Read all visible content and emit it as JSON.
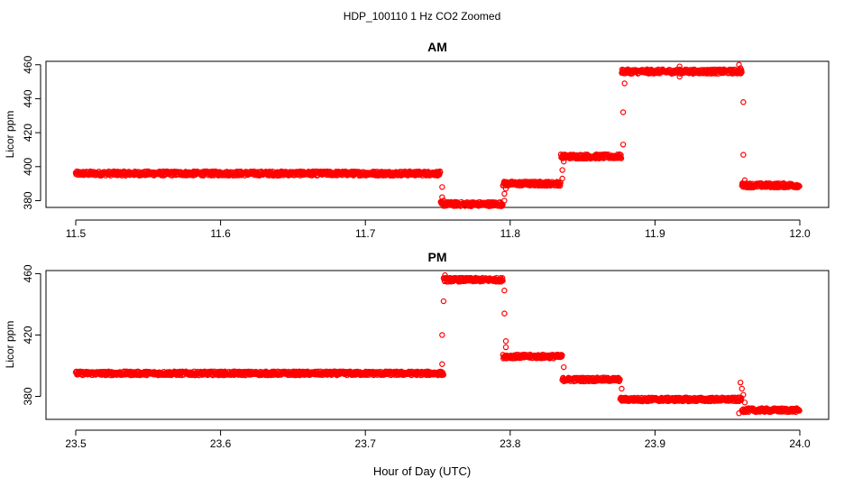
{
  "figure": {
    "title": "HDP_100110  1 Hz CO2 Zoomed",
    "xlabel": "Hour of Day (UTC)"
  },
  "chart_data": [
    {
      "type": "scatter",
      "title": "AM",
      "xlabel": "",
      "ylabel": "Licor ppm",
      "xlim": [
        11.5,
        12.0
      ],
      "ylim": [
        376,
        462
      ],
      "xticks": [
        11.5,
        11.6,
        11.7,
        11.8,
        11.9,
        12.0
      ],
      "xtick_labels": [
        "11.5",
        "11.6",
        "11.7",
        "11.8",
        "11.9",
        "12.0"
      ],
      "yticks": [
        380,
        400,
        420,
        440,
        460
      ],
      "ytick_labels": [
        "380",
        "400",
        "420",
        "440",
        "460"
      ],
      "marker_color": "#ff0000",
      "marker": "open-circle",
      "grid": false,
      "sample_rate_hz": 1,
      "segments": [
        {
          "x_start": 11.5,
          "x_end": 11.752,
          "level": 396
        },
        {
          "x_start": 11.752,
          "x_end": 11.795,
          "level": 378
        },
        {
          "x_start": 11.795,
          "x_end": 11.835,
          "level": 390
        },
        {
          "x_start": 11.835,
          "x_end": 11.877,
          "level": 406
        },
        {
          "x_start": 11.877,
          "x_end": 11.96,
          "level": 456
        },
        {
          "x_start": 11.96,
          "x_end": 12.0,
          "level": 389
        }
      ],
      "outliers": [
        {
          "x": 11.753,
          "y": 388
        },
        {
          "x": 11.753,
          "y": 382
        },
        {
          "x": 11.754,
          "y": 380
        },
        {
          "x": 11.796,
          "y": 380
        },
        {
          "x": 11.796,
          "y": 384
        },
        {
          "x": 11.797,
          "y": 387
        },
        {
          "x": 11.836,
          "y": 393
        },
        {
          "x": 11.836,
          "y": 398
        },
        {
          "x": 11.837,
          "y": 403
        },
        {
          "x": 11.878,
          "y": 413
        },
        {
          "x": 11.878,
          "y": 432
        },
        {
          "x": 11.879,
          "y": 449
        },
        {
          "x": 11.917,
          "y": 459
        },
        {
          "x": 11.917,
          "y": 453
        },
        {
          "x": 11.958,
          "y": 460
        },
        {
          "x": 11.959,
          "y": 458
        },
        {
          "x": 11.961,
          "y": 438
        },
        {
          "x": 11.961,
          "y": 407
        },
        {
          "x": 11.962,
          "y": 392
        }
      ]
    },
    {
      "type": "scatter",
      "title": "PM",
      "xlabel": "",
      "ylabel": "Licor ppm",
      "xlim": [
        23.5,
        24.0
      ],
      "ylim": [
        365,
        462
      ],
      "xticks": [
        23.5,
        23.6,
        23.7,
        23.8,
        23.9,
        24.0
      ],
      "xtick_labels": [
        "23.5",
        "23.6",
        "23.7",
        "23.8",
        "23.9",
        "24.0"
      ],
      "yticks": [
        380,
        420,
        460
      ],
      "ytick_labels": [
        "380",
        "420",
        "460"
      ],
      "marker_color": "#ff0000",
      "marker": "open-circle",
      "grid": false,
      "sample_rate_hz": 1,
      "segments": [
        {
          "x_start": 23.5,
          "x_end": 23.754,
          "level": 395
        },
        {
          "x_start": 23.754,
          "x_end": 23.795,
          "level": 456
        },
        {
          "x_start": 23.795,
          "x_end": 23.836,
          "level": 406
        },
        {
          "x_start": 23.836,
          "x_end": 23.876,
          "level": 391
        },
        {
          "x_start": 23.876,
          "x_end": 23.96,
          "level": 378
        },
        {
          "x_start": 23.96,
          "x_end": 24.0,
          "level": 371
        }
      ],
      "outliers": [
        {
          "x": 23.753,
          "y": 401
        },
        {
          "x": 23.753,
          "y": 420
        },
        {
          "x": 23.754,
          "y": 442
        },
        {
          "x": 23.755,
          "y": 459
        },
        {
          "x": 23.796,
          "y": 449
        },
        {
          "x": 23.796,
          "y": 434
        },
        {
          "x": 23.797,
          "y": 416
        },
        {
          "x": 23.797,
          "y": 412
        },
        {
          "x": 23.837,
          "y": 399
        },
        {
          "x": 23.877,
          "y": 385
        },
        {
          "x": 23.958,
          "y": 369
        },
        {
          "x": 23.959,
          "y": 389
        },
        {
          "x": 23.96,
          "y": 385
        },
        {
          "x": 23.961,
          "y": 381
        },
        {
          "x": 23.962,
          "y": 376
        }
      ]
    }
  ]
}
